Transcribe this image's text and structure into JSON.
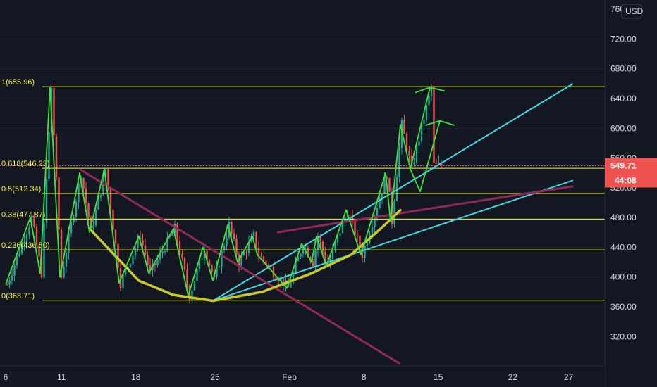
{
  "price_axis": {
    "currency": "USD",
    "ticks": [
      "320.00",
      "360.00",
      "400.00",
      "440.00",
      "480.00",
      "520.00",
      "560.00",
      "600.00",
      "640.00",
      "680.00",
      "720.00",
      "760"
    ]
  },
  "time_axis": {
    "ticks": [
      "6",
      "11",
      "18",
      "25",
      "Feb",
      "8",
      "15",
      "22",
      "27"
    ]
  },
  "price_tags": {
    "last_price": "549.71",
    "countdown": "44:08",
    "color": "#ef5350"
  },
  "colors": {
    "background": "#131722",
    "bull": "#26a69a",
    "bear": "#ef5350",
    "fib": "#f5f542",
    "wave": "#39e639",
    "trend_cyan": "#3fd8e6",
    "trend_maroon": "#8e2a55",
    "saucer": "#c9c92c"
  },
  "chart_data": {
    "type": "candlestick",
    "title": "",
    "xlabel": "",
    "ylabel": "",
    "ylim": [
      285,
      770
    ],
    "x_categories": [
      "6",
      "11",
      "18",
      "25",
      "Feb",
      "8",
      "15",
      "22",
      "27"
    ],
    "fib_levels": [
      {
        "ratio": "1",
        "price": 655.96,
        "label": "1(655.96)"
      },
      {
        "ratio": "0.618",
        "price": 546.23,
        "label": "0.618(546.23)"
      },
      {
        "ratio": "0.5",
        "price": 512.34,
        "label": "0.5(512.34)"
      },
      {
        "ratio": "0.38",
        "price": 477.87,
        "label": "0.38(477.87)"
      },
      {
        "ratio": "0.236",
        "price": 436.5,
        "label": "0.236(436.50)"
      },
      {
        "ratio": "0",
        "price": 368.71,
        "label": "0(368.71)"
      }
    ],
    "current_price": 549.71,
    "zigzag_day_price": [
      [
        0,
        390
      ],
      [
        5,
        480
      ],
      [
        7,
        405
      ],
      [
        9,
        655
      ],
      [
        11,
        400
      ],
      [
        15,
        540
      ],
      [
        17,
        460
      ],
      [
        20,
        545
      ],
      [
        23,
        392
      ],
      [
        27,
        455
      ],
      [
        29,
        405
      ],
      [
        34,
        465
      ],
      [
        37,
        375
      ],
      [
        40,
        440
      ],
      [
        42,
        395
      ],
      [
        45,
        470
      ],
      [
        47,
        420
      ],
      [
        50,
        455
      ],
      [
        51,
        430
      ],
      [
        57,
        385
      ],
      [
        60,
        445
      ],
      [
        62,
        420
      ],
      [
        63,
        455
      ],
      [
        65,
        415
      ],
      [
        69,
        490
      ],
      [
        72,
        430
      ],
      [
        77,
        540
      ],
      [
        78,
        475
      ],
      [
        80,
        605
      ],
      [
        82,
        545
      ],
      [
        86,
        655
      ]
    ],
    "zigzag_branch_day_price": [
      [
        82,
        545
      ],
      [
        84,
        515
      ],
      [
        88,
        610
      ]
    ],
    "saucer_day_price": [
      [
        17,
        465
      ],
      [
        22,
        430
      ],
      [
        27,
        395
      ],
      [
        34,
        376
      ],
      [
        42,
        368
      ],
      [
        52,
        380
      ],
      [
        62,
        405
      ],
      [
        70,
        430
      ],
      [
        76,
        465
      ],
      [
        80,
        490
      ]
    ],
    "trendlines_day_price": [
      {
        "name": "cyan-upper",
        "from": [
          42,
          368
        ],
        "to": [
          115,
          660
        ]
      },
      {
        "name": "cyan-lower",
        "from": [
          42,
          368
        ],
        "to": [
          115,
          530
        ]
      },
      {
        "name": "maroon-down",
        "from": [
          15,
          545
        ],
        "to": [
          80,
          283
        ]
      },
      {
        "name": "maroon-up",
        "from": [
          55,
          460
        ],
        "to": [
          115,
          522
        ]
      }
    ]
  }
}
